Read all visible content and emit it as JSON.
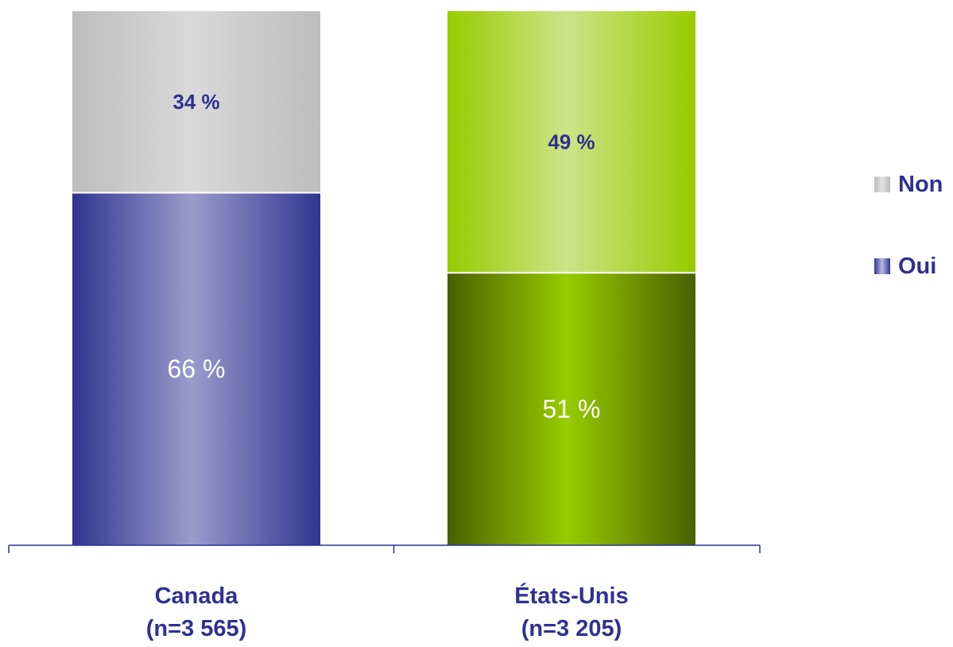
{
  "chart_data": {
    "type": "bar",
    "stacked": true,
    "percent": true,
    "categories": [
      "Canada",
      "États-Unis"
    ],
    "category_notes": [
      "(n=3 565)",
      "(n=3 205)"
    ],
    "series": [
      {
        "name": "Oui",
        "values": [
          66,
          51
        ],
        "labels": [
          "66 %",
          "51 %"
        ],
        "legend_color": "#383a95",
        "bar_colors": [
          {
            "edge": "#303590",
            "center": "#9a9ccb"
          },
          {
            "edge": "#4a5f00",
            "center": "#97cc00"
          }
        ],
        "label_color": "#ffffff"
      },
      {
        "name": "Non",
        "values": [
          34,
          49
        ],
        "labels": [
          "34 %",
          "49 %"
        ],
        "legend_color": "#c8c8c8",
        "bar_colors": [
          {
            "edge": "#bdbdbd",
            "center": "#d9d9d9"
          },
          {
            "edge": "#97cc00",
            "center": "#cde388"
          }
        ],
        "label_color": "#2e3192"
      }
    ],
    "legend": {
      "position": "right",
      "order": [
        "Non",
        "Oui"
      ]
    },
    "ylim": [
      0,
      100
    ],
    "grid": false,
    "axis_color": "#2e3192",
    "text_color": "#2e3192"
  }
}
